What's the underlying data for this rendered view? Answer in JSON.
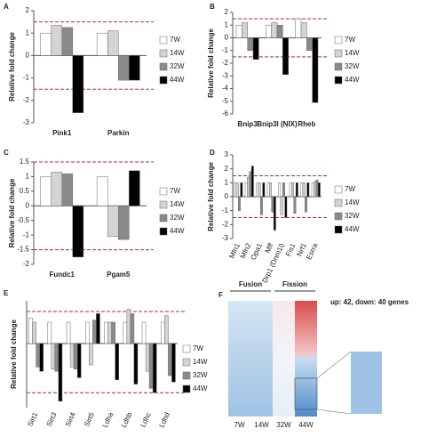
{
  "chart_data": [
    {
      "type": "bar",
      "panel_label": "A",
      "y_label": "Relative fold change",
      "categories": [
        "Pink1",
        "Parkin"
      ],
      "series": [
        {
          "name": "7W",
          "color": "#ffffff",
          "values": [
            1,
            1
          ]
        },
        {
          "name": "14W",
          "color": "#d4d4d4",
          "values": [
            1.35,
            1.1
          ]
        },
        {
          "name": "32W",
          "color": "#8a8a8a",
          "values": [
            1.25,
            -1.1
          ]
        },
        {
          "name": "44W",
          "color": "#000000",
          "values": [
            -2.55,
            -1.1
          ]
        }
      ],
      "ylim": [
        -3,
        2
      ],
      "yticks": [
        -3,
        -2,
        -1,
        0,
        1,
        2
      ],
      "reference_lines": [
        1.5,
        -1.5
      ]
    },
    {
      "type": "bar",
      "panel_label": "B",
      "y_label": "Relative fold change",
      "categories": [
        "Bnip3",
        "Bnip3l (NIX)",
        "Rheb"
      ],
      "series": [
        {
          "name": "7W",
          "color": "#ffffff",
          "values": [
            1,
            1,
            1.5
          ]
        },
        {
          "name": "14W",
          "color": "#d4d4d4",
          "values": [
            1.2,
            1.2,
            1.2
          ]
        },
        {
          "name": "32W",
          "color": "#8a8a8a",
          "values": [
            -1,
            1,
            -1
          ]
        },
        {
          "name": "44W",
          "color": "#000000",
          "values": [
            -1.7,
            -2.9,
            -5.1
          ]
        }
      ],
      "ylim": [
        -6,
        2
      ],
      "yticks": [
        -6,
        -5,
        -4,
        -3,
        -2,
        -1,
        0,
        1,
        2
      ],
      "reference_lines": [
        1.5,
        -1.5
      ]
    },
    {
      "type": "bar",
      "panel_label": "C",
      "y_label": "Relative fold change",
      "categories": [
        "Fundc1",
        "Pgam5"
      ],
      "series": [
        {
          "name": "7W",
          "color": "#ffffff",
          "values": [
            1,
            1
          ]
        },
        {
          "name": "14W",
          "color": "#d4d4d4",
          "values": [
            1.15,
            -1.05
          ]
        },
        {
          "name": "32W",
          "color": "#8a8a8a",
          "values": [
            1.1,
            -1.15
          ]
        },
        {
          "name": "44W",
          "color": "#000000",
          "values": [
            -1.75,
            1.2
          ]
        }
      ],
      "ylim": [
        -2,
        1.5
      ],
      "yticks": [
        -2,
        -1.5,
        -1,
        -0.5,
        0,
        0.5,
        1,
        1.5
      ],
      "reference_lines": [
        1.5,
        -1.5
      ]
    },
    {
      "type": "bar",
      "panel_label": "D",
      "y_label": "Relative fold change",
      "categories": [
        "Mfn1",
        "Mfn2",
        "Opa1",
        "Mff",
        "Drp1 (Dnm1l)",
        "Fis1",
        "Nrf1",
        "Esrra"
      ],
      "series": [
        {
          "name": "7W",
          "color": "#ffffff",
          "values": [
            1,
            1,
            1,
            1,
            1,
            1,
            1,
            1
          ]
        },
        {
          "name": "14W",
          "color": "#d4d4d4",
          "values": [
            1,
            1.4,
            1,
            1,
            -1.3,
            1,
            1,
            1.1
          ]
        },
        {
          "name": "32W",
          "color": "#8a8a8a",
          "values": [
            -1,
            1.8,
            -1.3,
            -1.1,
            1,
            -1.2,
            -1.1,
            1.2
          ]
        },
        {
          "name": "44W",
          "color": "#000000",
          "values": [
            1,
            2.2,
            1,
            -2.4,
            -1.5,
            1,
            1,
            1
          ]
        }
      ],
      "ylim": [
        -3,
        3
      ],
      "yticks": [
        -3,
        -2,
        -1,
        0,
        1,
        2,
        3
      ],
      "reference_lines": [
        1.5,
        -1.5
      ]
    },
    {
      "type": "bar",
      "panel_label": "E",
      "y_label": "Relative fold change",
      "categories": [
        "Sirt1",
        "Sirt3",
        "Sirt4",
        "Sirt5",
        "Ldha",
        "Ldhb",
        "Ldhc",
        "Ldhd"
      ],
      "series": [
        {
          "name": "7W",
          "color": "#ffffff",
          "values": [
            1.2,
            1,
            1,
            1,
            1,
            1,
            1,
            1
          ]
        },
        {
          "name": "14W",
          "color": "#d4d4d4",
          "values": [
            1,
            -1.2,
            -1.1,
            -1,
            1,
            1.6,
            -1.3,
            1.3
          ]
        },
        {
          "name": "32W",
          "color": "#8a8a8a",
          "values": [
            -1.1,
            -1.3,
            -1.2,
            1.1,
            1,
            1.4,
            -2.1,
            -1.5
          ]
        },
        {
          "name": "44W",
          "color": "#000000",
          "values": [
            -1.3,
            -2.7,
            -1.6,
            1.4,
            -1.7,
            -1.9,
            -2.3,
            -1.8
          ]
        }
      ],
      "ylim": [
        -3,
        2
      ],
      "reference_lines": [
        1.5,
        -2.3
      ]
    },
    {
      "type": "heatmap",
      "panel_label": "F",
      "group_labels": [
        "Fusion",
        "Fission"
      ],
      "columns": [
        "7W",
        "14W",
        "32W",
        "44W"
      ],
      "annotation": "up: 42, down: 40 genes"
    }
  ]
}
